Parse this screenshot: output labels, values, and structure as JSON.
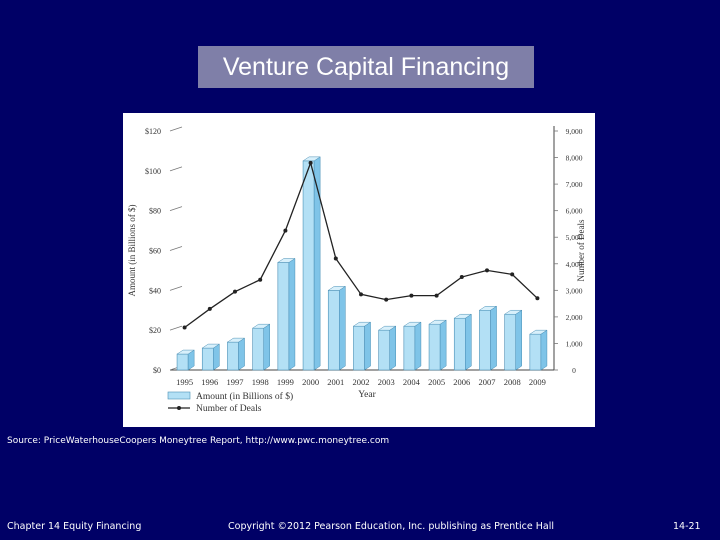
{
  "slide": {
    "title": "Venture Capital Financing",
    "source": "Source: PriceWaterhouseCoopers Moneytree Report, http://www.pwc.moneytree.com",
    "footer_left": "Chapter 14 Equity Financing",
    "footer_center": "Copyright ©2012 Pearson Education, Inc. publishing as Prentice Hall",
    "footer_right": "14-21"
  },
  "chart_data": {
    "type": "bar",
    "categories": [
      "1995",
      "1996",
      "1997",
      "1998",
      "1999",
      "2000",
      "2001",
      "2002",
      "2003",
      "2004",
      "2005",
      "2006",
      "2007",
      "2008",
      "2009"
    ],
    "series": [
      {
        "name": "Amount (in Billions of $)",
        "type": "bar",
        "axis": "left",
        "values": [
          8,
          11,
          14,
          21,
          54,
          105,
          40,
          22,
          20,
          22,
          23,
          26,
          30,
          28,
          18
        ]
      },
      {
        "name": "Number of Deals",
        "type": "line",
        "axis": "right",
        "values": [
          1600,
          2300,
          2950,
          3400,
          5250,
          7800,
          4200,
          2850,
          2650,
          2800,
          2800,
          3500,
          3750,
          3600,
          2700
        ]
      }
    ],
    "xlabel": "Year",
    "ylabel": "Amount (in Billions of $)",
    "y2label": "Number of Deals",
    "ylim": [
      0,
      120
    ],
    "y2lim": [
      0,
      9000
    ],
    "yticks": [
      "$0",
      "$20",
      "$40",
      "$60",
      "$80",
      "$100",
      "$120"
    ],
    "y2ticks": [
      "0",
      "1,000",
      "2,000",
      "3,000",
      "4,000",
      "5,000",
      "6,000",
      "7,000",
      "8,000",
      "9,000"
    ],
    "legend_position": "bottom-left",
    "grid": false,
    "colors": {
      "bar": "#b3e0f5",
      "bar_side": "#7fc4e8",
      "bar_top": "#d8f0fb",
      "line": "#222222"
    }
  }
}
